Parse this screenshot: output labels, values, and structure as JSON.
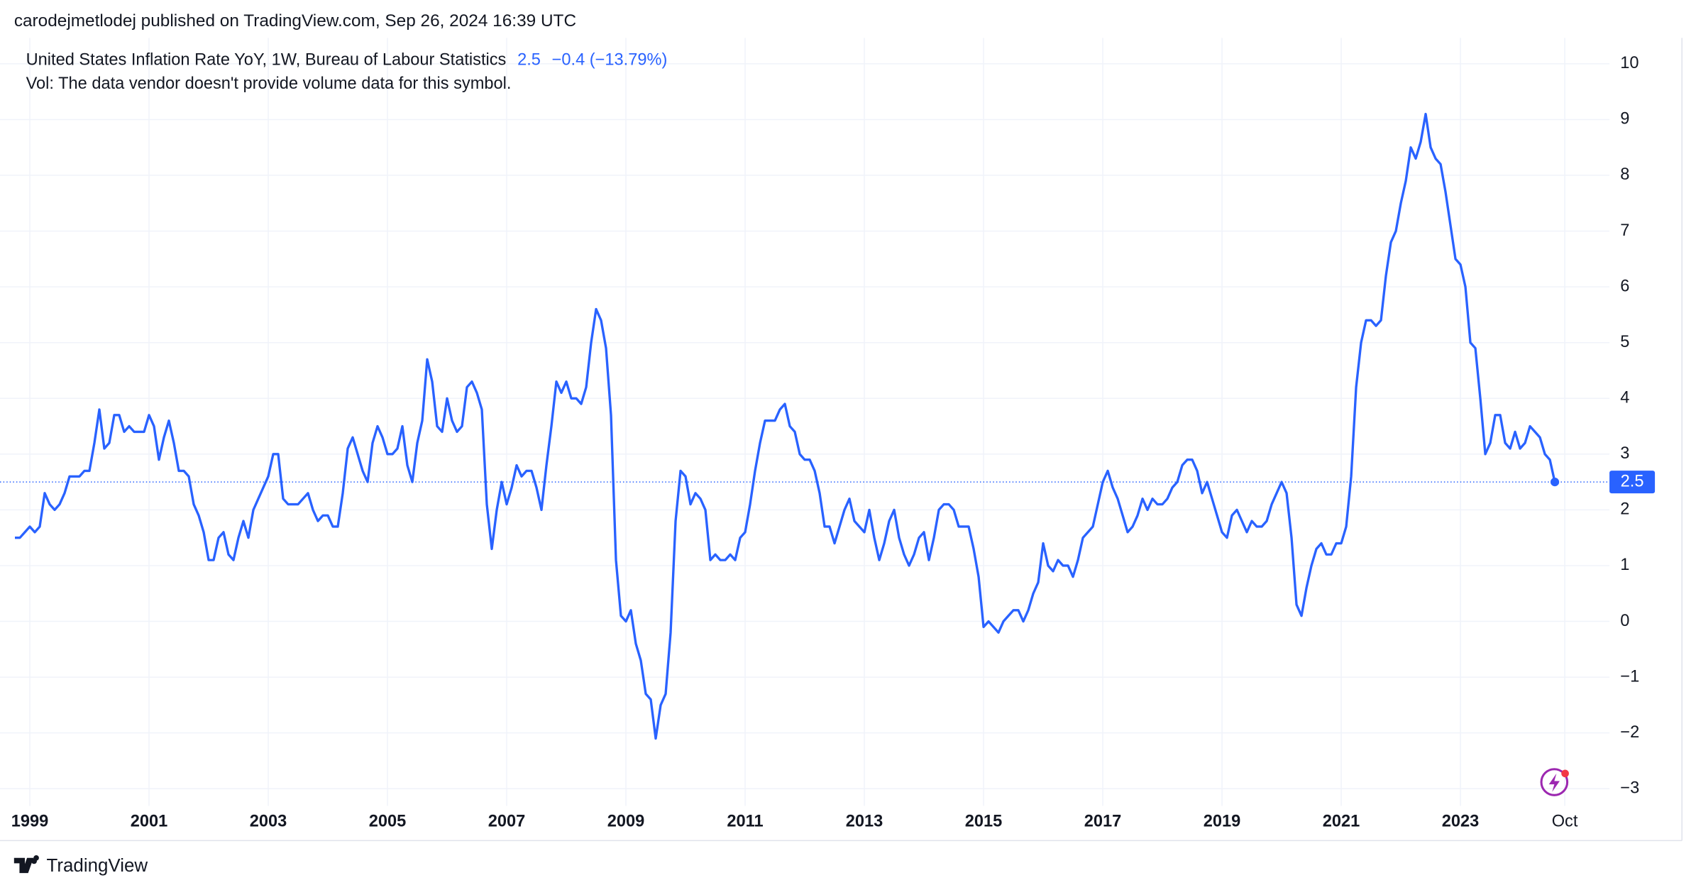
{
  "header": {
    "published": "carodejmetlodej published on TradingView.com, Sep 26, 2024 16:39 UTC"
  },
  "chart_data": {
    "type": "line",
    "title": "United States Inflation Rate YoY, 1W, Bureau of Labour Statistics",
    "change_label": "−0.4 (−13.79%)",
    "volume_note": "Vol: The data vendor doesn't provide volume data for this symbol.",
    "color": "#2962ff",
    "grid": true,
    "x": [
      "1998-10",
      "1998-11",
      "1998-12",
      "1999-01",
      "1999-02",
      "1999-03",
      "1999-04",
      "1999-05",
      "1999-06",
      "1999-07",
      "1999-08",
      "1999-09",
      "1999-10",
      "1999-11",
      "1999-12",
      "2000-01",
      "2000-02",
      "2000-03",
      "2000-04",
      "2000-05",
      "2000-06",
      "2000-07",
      "2000-08",
      "2000-09",
      "2000-10",
      "2000-11",
      "2000-12",
      "2001-01",
      "2001-02",
      "2001-03",
      "2001-04",
      "2001-05",
      "2001-06",
      "2001-07",
      "2001-08",
      "2001-09",
      "2001-10",
      "2001-11",
      "2001-12",
      "2002-01",
      "2002-02",
      "2002-03",
      "2002-04",
      "2002-05",
      "2002-06",
      "2002-07",
      "2002-08",
      "2002-09",
      "2002-10",
      "2002-11",
      "2002-12",
      "2003-01",
      "2003-02",
      "2003-03",
      "2003-04",
      "2003-05",
      "2003-06",
      "2003-07",
      "2003-08",
      "2003-09",
      "2003-10",
      "2003-11",
      "2003-12",
      "2004-01",
      "2004-02",
      "2004-03",
      "2004-04",
      "2004-05",
      "2004-06",
      "2004-07",
      "2004-08",
      "2004-09",
      "2004-10",
      "2004-11",
      "2004-12",
      "2005-01",
      "2005-02",
      "2005-03",
      "2005-04",
      "2005-05",
      "2005-06",
      "2005-07",
      "2005-08",
      "2005-09",
      "2005-10",
      "2005-11",
      "2005-12",
      "2006-01",
      "2006-02",
      "2006-03",
      "2006-04",
      "2006-05",
      "2006-06",
      "2006-07",
      "2006-08",
      "2006-09",
      "2006-10",
      "2006-11",
      "2006-12",
      "2007-01",
      "2007-02",
      "2007-03",
      "2007-04",
      "2007-05",
      "2007-06",
      "2007-07",
      "2007-08",
      "2007-09",
      "2007-10",
      "2007-11",
      "2007-12",
      "2008-01",
      "2008-02",
      "2008-03",
      "2008-04",
      "2008-05",
      "2008-06",
      "2008-07",
      "2008-08",
      "2008-09",
      "2008-10",
      "2008-11",
      "2008-12",
      "2009-01",
      "2009-02",
      "2009-03",
      "2009-04",
      "2009-05",
      "2009-06",
      "2009-07",
      "2009-08",
      "2009-09",
      "2009-10",
      "2009-11",
      "2009-12",
      "2010-01",
      "2010-02",
      "2010-03",
      "2010-04",
      "2010-05",
      "2010-06",
      "2010-07",
      "2010-08",
      "2010-09",
      "2010-10",
      "2010-11",
      "2010-12",
      "2011-01",
      "2011-02",
      "2011-03",
      "2011-04",
      "2011-05",
      "2011-06",
      "2011-07",
      "2011-08",
      "2011-09",
      "2011-10",
      "2011-11",
      "2011-12",
      "2012-01",
      "2012-02",
      "2012-03",
      "2012-04",
      "2012-05",
      "2012-06",
      "2012-07",
      "2012-08",
      "2012-09",
      "2012-10",
      "2012-11",
      "2012-12",
      "2013-01",
      "2013-02",
      "2013-03",
      "2013-04",
      "2013-05",
      "2013-06",
      "2013-07",
      "2013-08",
      "2013-09",
      "2013-10",
      "2013-11",
      "2013-12",
      "2014-01",
      "2014-02",
      "2014-03",
      "2014-04",
      "2014-05",
      "2014-06",
      "2014-07",
      "2014-08",
      "2014-09",
      "2014-10",
      "2014-11",
      "2014-12",
      "2015-01",
      "2015-02",
      "2015-03",
      "2015-04",
      "2015-05",
      "2015-06",
      "2015-07",
      "2015-08",
      "2015-09",
      "2015-10",
      "2015-11",
      "2015-12",
      "2016-01",
      "2016-02",
      "2016-03",
      "2016-04",
      "2016-05",
      "2016-06",
      "2016-07",
      "2016-08",
      "2016-09",
      "2016-10",
      "2016-11",
      "2016-12",
      "2017-01",
      "2017-02",
      "2017-03",
      "2017-04",
      "2017-05",
      "2017-06",
      "2017-07",
      "2017-08",
      "2017-09",
      "2017-10",
      "2017-11",
      "2017-12",
      "2018-01",
      "2018-02",
      "2018-03",
      "2018-04",
      "2018-05",
      "2018-06",
      "2018-07",
      "2018-08",
      "2018-09",
      "2018-10",
      "2018-11",
      "2018-12",
      "2019-01",
      "2019-02",
      "2019-03",
      "2019-04",
      "2019-05",
      "2019-06",
      "2019-07",
      "2019-08",
      "2019-09",
      "2019-10",
      "2019-11",
      "2019-12",
      "2020-01",
      "2020-02",
      "2020-03",
      "2020-04",
      "2020-05",
      "2020-06",
      "2020-07",
      "2020-08",
      "2020-09",
      "2020-10",
      "2020-11",
      "2020-12",
      "2021-01",
      "2021-02",
      "2021-03",
      "2021-04",
      "2021-05",
      "2021-06",
      "2021-07",
      "2021-08",
      "2021-09",
      "2021-10",
      "2021-11",
      "2021-12",
      "2022-01",
      "2022-02",
      "2022-03",
      "2022-04",
      "2022-05",
      "2022-06",
      "2022-07",
      "2022-08",
      "2022-09",
      "2022-10",
      "2022-11",
      "2022-12",
      "2023-01",
      "2023-02",
      "2023-03",
      "2023-04",
      "2023-05",
      "2023-06",
      "2023-07",
      "2023-08",
      "2023-09",
      "2023-10",
      "2023-11",
      "2023-12",
      "2024-01",
      "2024-02",
      "2024-03",
      "2024-04",
      "2024-05",
      "2024-06",
      "2024-07",
      "2024-08"
    ],
    "values": [
      1.5,
      1.5,
      1.6,
      1.7,
      1.6,
      1.7,
      2.3,
      2.1,
      2.0,
      2.1,
      2.3,
      2.6,
      2.6,
      2.6,
      2.7,
      2.7,
      3.2,
      3.8,
      3.1,
      3.2,
      3.7,
      3.7,
      3.4,
      3.5,
      3.4,
      3.4,
      3.4,
      3.7,
      3.5,
      2.9,
      3.3,
      3.6,
      3.2,
      2.7,
      2.7,
      2.6,
      2.1,
      1.9,
      1.6,
      1.1,
      1.1,
      1.5,
      1.6,
      1.2,
      1.1,
      1.5,
      1.8,
      1.5,
      2.0,
      2.2,
      2.4,
      2.6,
      3.0,
      3.0,
      2.2,
      2.1,
      2.1,
      2.1,
      2.2,
      2.3,
      2.0,
      1.8,
      1.9,
      1.9,
      1.7,
      1.7,
      2.3,
      3.1,
      3.3,
      3.0,
      2.7,
      2.5,
      3.2,
      3.5,
      3.3,
      3.0,
      3.0,
      3.1,
      3.5,
      2.8,
      2.5,
      3.2,
      3.6,
      4.7,
      4.3,
      3.5,
      3.4,
      4.0,
      3.6,
      3.4,
      3.5,
      4.2,
      4.3,
      4.1,
      3.8,
      2.1,
      1.3,
      2.0,
      2.5,
      2.1,
      2.4,
      2.8,
      2.6,
      2.7,
      2.7,
      2.4,
      2.0,
      2.8,
      3.5,
      4.3,
      4.1,
      4.3,
      4.0,
      4.0,
      3.9,
      4.2,
      5.0,
      5.6,
      5.4,
      4.9,
      3.7,
      1.1,
      0.1,
      0.0,
      0.2,
      -0.4,
      -0.7,
      -1.3,
      -1.4,
      -2.1,
      -1.5,
      -1.3,
      -0.2,
      1.8,
      2.7,
      2.6,
      2.1,
      2.3,
      2.2,
      2.0,
      1.1,
      1.2,
      1.1,
      1.1,
      1.2,
      1.1,
      1.5,
      1.6,
      2.1,
      2.7,
      3.2,
      3.6,
      3.6,
      3.6,
      3.8,
      3.9,
      3.5,
      3.4,
      3.0,
      2.9,
      2.9,
      2.7,
      2.3,
      1.7,
      1.7,
      1.4,
      1.7,
      2.0,
      2.2,
      1.8,
      1.7,
      1.6,
      2.0,
      1.5,
      1.1,
      1.4,
      1.8,
      2.0,
      1.5,
      1.2,
      1.0,
      1.2,
      1.5,
      1.6,
      1.1,
      1.5,
      2.0,
      2.1,
      2.1,
      2.0,
      1.7,
      1.7,
      1.7,
      1.3,
      0.8,
      -0.1,
      0.0,
      -0.1,
      -0.2,
      0.0,
      0.1,
      0.2,
      0.2,
      0.0,
      0.2,
      0.5,
      0.7,
      1.4,
      1.0,
      0.9,
      1.1,
      1.0,
      1.0,
      0.8,
      1.1,
      1.5,
      1.6,
      1.7,
      2.1,
      2.5,
      2.7,
      2.4,
      2.2,
      1.9,
      1.6,
      1.7,
      1.9,
      2.2,
      2.0,
      2.2,
      2.1,
      2.1,
      2.2,
      2.4,
      2.5,
      2.8,
      2.9,
      2.9,
      2.7,
      2.3,
      2.5,
      2.2,
      1.9,
      1.6,
      1.5,
      1.9,
      2.0,
      1.8,
      1.6,
      1.8,
      1.7,
      1.7,
      1.8,
      2.1,
      2.3,
      2.5,
      2.3,
      1.5,
      0.3,
      0.1,
      0.6,
      1.0,
      1.3,
      1.4,
      1.2,
      1.2,
      1.4,
      1.4,
      1.7,
      2.6,
      4.2,
      5.0,
      5.4,
      5.4,
      5.3,
      5.4,
      6.2,
      6.8,
      7.0,
      7.5,
      7.9,
      8.5,
      8.3,
      8.6,
      9.1,
      8.5,
      8.3,
      8.2,
      7.7,
      7.1,
      6.5,
      6.4,
      6.0,
      5.0,
      4.9,
      4.0,
      3.0,
      3.2,
      3.7,
      3.7,
      3.2,
      3.1,
      3.4,
      3.1,
      3.2,
      3.5,
      3.4,
      3.3,
      3.0,
      2.9,
      2.5
    ],
    "xlim": [
      "1998-07",
      "2025-07"
    ],
    "xticks": [
      {
        "value": "1999-01",
        "label": "1999"
      },
      {
        "value": "2001-01",
        "label": "2001"
      },
      {
        "value": "2003-01",
        "label": "2003"
      },
      {
        "value": "2005-01",
        "label": "2005"
      },
      {
        "value": "2007-01",
        "label": "2007"
      },
      {
        "value": "2009-01",
        "label": "2009"
      },
      {
        "value": "2011-01",
        "label": "2011"
      },
      {
        "value": "2013-01",
        "label": "2013"
      },
      {
        "value": "2015-01",
        "label": "2015"
      },
      {
        "value": "2017-01",
        "label": "2017"
      },
      {
        "value": "2019-01",
        "label": "2019"
      },
      {
        "value": "2021-01",
        "label": "2021"
      },
      {
        "value": "2023-01",
        "label": "2023"
      },
      {
        "value": "2024-10",
        "label": "Oct"
      }
    ],
    "ylim": [
      -3.3,
      10.5
    ],
    "yticks": [
      {
        "value": -3,
        "label": "−3"
      },
      {
        "value": -2,
        "label": "−2"
      },
      {
        "value": -1,
        "label": "−1"
      },
      0,
      1,
      2,
      3,
      4,
      5,
      6,
      7,
      8,
      9,
      10
    ]
  },
  "footer": {
    "brand": "TradingView"
  }
}
